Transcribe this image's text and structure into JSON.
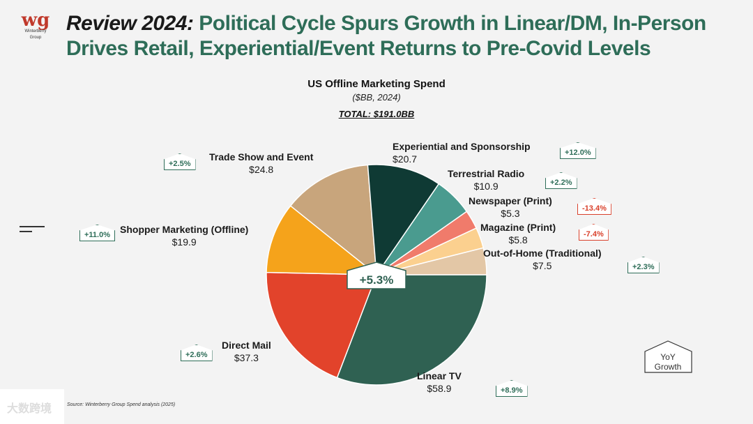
{
  "logo": {
    "mark": "wg",
    "line1": "Winterberry",
    "line2": "Group"
  },
  "title": {
    "lead": "Review 2024:",
    "rest": " Political Cycle Spurs Growth in Linear/DM, In-Person Drives Retail, Experiential/Event Returns to Pre-Covid Levels"
  },
  "chart_data": {
    "type": "pie",
    "title": "US Offline Marketing Spend",
    "subtitle": "($BB, 2024)",
    "total": "TOTAL: $191.0BB",
    "center_badge": "+5.3%",
    "slices": [
      {
        "label": "Linear TV",
        "value": 58.9,
        "value_label": "$58.9",
        "growth": "+8.9%",
        "color": "#2f6152"
      },
      {
        "label": "Direct Mail",
        "value": 37.3,
        "value_label": "$37.3",
        "growth": "+2.6%",
        "color": "#e2432b"
      },
      {
        "label": "Shopper Marketing (Offline)",
        "value": 19.9,
        "value_label": "$19.9",
        "growth": "+11.0%",
        "color": "#f5a31b"
      },
      {
        "label": "Trade Show and Event",
        "value": 24.8,
        "value_label": "$24.8",
        "growth": "+2.5%",
        "color": "#c8a57c"
      },
      {
        "label": "Experiential and Sponsorship",
        "value": 20.7,
        "value_label": "$20.7",
        "growth": "+12.0%",
        "color": "#0f3a34"
      },
      {
        "label": "Terrestrial Radio",
        "value": 10.9,
        "value_label": "$10.9",
        "growth": "+2.2%",
        "color": "#4a9b8f"
      },
      {
        "label": "Newspaper (Print)",
        "value": 5.3,
        "value_label": "$5.3",
        "growth": "-13.4%",
        "color": "#f07b6b"
      },
      {
        "label": "Magazine (Print)",
        "value": 5.8,
        "value_label": "$5.8",
        "growth": "-7.4%",
        "color": "#fbd08f"
      },
      {
        "label": "Out-of-Home (Traditional)",
        "value": 7.5,
        "value_label": "$7.5",
        "growth": "+2.3%",
        "color": "#e3c7a6"
      }
    ],
    "legend_note": "YoY Growth"
  },
  "footnote": "Source: Winterberry Group Spend analysis (2025)",
  "watermark": "大数跨境"
}
